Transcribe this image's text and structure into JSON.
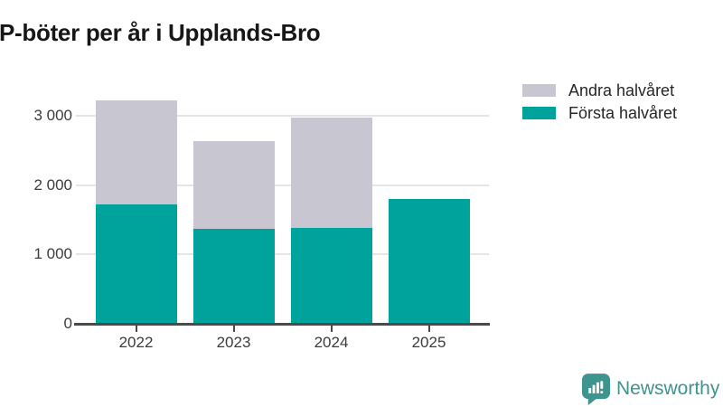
{
  "title": "P-böter per år i Upplands-Bro",
  "legend": {
    "items": [
      {
        "label": "Andra halvåret",
        "color": "#c8c6d1"
      },
      {
        "label": "Första halvåret",
        "color": "#00a39b"
      }
    ]
  },
  "chart_data": {
    "type": "bar",
    "stacked": true,
    "title": "P-böter per år i Upplands-Bro",
    "categories": [
      "2022",
      "2023",
      "2024",
      "2025"
    ],
    "series": [
      {
        "name": "Första halvåret",
        "color": "#00a39b",
        "values": [
          1720,
          1370,
          1380,
          1800
        ]
      },
      {
        "name": "Andra halvåret",
        "color": "#c8c6d1",
        "values": [
          1500,
          1270,
          1600,
          0
        ]
      }
    ],
    "totals": [
      3220,
      2640,
      2980,
      1800
    ],
    "xlabel": "",
    "ylabel": "",
    "ylim": [
      0,
      3250
    ],
    "yticks": {
      "values": [
        0,
        1000,
        2000,
        3000
      ],
      "labels": [
        "0",
        "1 000",
        "2 000",
        "3 000"
      ]
    },
    "grid": true,
    "legend_position": "top-right"
  },
  "branding": {
    "logo_text": "Newsworthy",
    "logo_icon": "newsworthy-bar-chart-bubble-icon",
    "color": "#3e948e"
  }
}
